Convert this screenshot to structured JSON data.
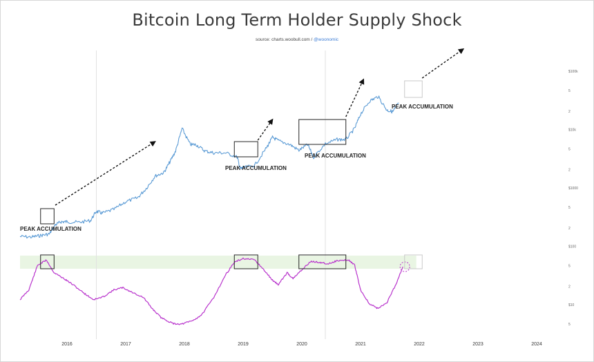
{
  "chart_data": {
    "type": "line",
    "title": "Bitcoin Long Term Holder Supply Shock",
    "source_prefix": "source: charts.woobull.com / ",
    "source_handle": "@woonomic",
    "x_ticks": [
      "2016",
      "2017",
      "2018",
      "2019",
      "2020",
      "2021",
      "2022",
      "2023",
      "2024"
    ],
    "y_axis_labels": [
      "$100k",
      "$10k",
      "$1000",
      "$100",
      "$10"
    ],
    "colors": {
      "price": "#5b9bd5",
      "supply_shock": "#b833cc",
      "accumulation_zone": "#e9f5e3",
      "box": "#222222"
    },
    "series": [
      {
        "name": "",
        "color": "#5b9bd5",
        "log_scale": true,
        "points": [
          [
            2015.2,
            240
          ],
          [
            2015.4,
            235
          ],
          [
            2015.55,
            250
          ],
          [
            2015.7,
            265
          ],
          [
            2015.8,
            380
          ],
          [
            2015.9,
            430
          ],
          [
            2016.0,
            430
          ],
          [
            2016.2,
            420
          ],
          [
            2016.4,
            450
          ],
          [
            2016.5,
            650
          ],
          [
            2016.6,
            600
          ],
          [
            2016.8,
            700
          ],
          [
            2017.0,
            950
          ],
          [
            2017.2,
            1100
          ],
          [
            2017.35,
            1600
          ],
          [
            2017.5,
            2600
          ],
          [
            2017.65,
            3000
          ],
          [
            2017.75,
            4500
          ],
          [
            2017.85,
            7000
          ],
          [
            2017.96,
            17000
          ],
          [
            2018.1,
            9000
          ],
          [
            2018.2,
            9000
          ],
          [
            2018.35,
            7000
          ],
          [
            2018.5,
            6500
          ],
          [
            2018.7,
            6500
          ],
          [
            2018.9,
            5500
          ],
          [
            2018.95,
            3500
          ],
          [
            2019.0,
            3600
          ],
          [
            2019.2,
            4000
          ],
          [
            2019.4,
            8000
          ],
          [
            2019.5,
            12000
          ],
          [
            2019.6,
            10500
          ],
          [
            2019.8,
            9000
          ],
          [
            2019.95,
            7200
          ],
          [
            2020.1,
            9000
          ],
          [
            2020.2,
            5500
          ],
          [
            2020.4,
            9300
          ],
          [
            2020.6,
            11000
          ],
          [
            2020.75,
            11000
          ],
          [
            2020.9,
            17000
          ],
          [
            2021.0,
            30000
          ],
          [
            2021.15,
            50000
          ],
          [
            2021.3,
            60000
          ],
          [
            2021.45,
            35000
          ],
          [
            2021.55,
            33000
          ],
          [
            2021.65,
            47000
          ]
        ]
      },
      {
        "name": "",
        "color": "#b833cc",
        "points": [
          [
            2015.2,
            0.42
          ],
          [
            2015.35,
            0.55
          ],
          [
            2015.5,
            0.88
          ],
          [
            2015.65,
            0.95
          ],
          [
            2015.78,
            0.78
          ],
          [
            2015.95,
            0.7
          ],
          [
            2016.1,
            0.62
          ],
          [
            2016.3,
            0.5
          ],
          [
            2016.45,
            0.42
          ],
          [
            2016.6,
            0.45
          ],
          [
            2016.8,
            0.55
          ],
          [
            2016.95,
            0.58
          ],
          [
            2017.1,
            0.52
          ],
          [
            2017.3,
            0.45
          ],
          [
            2017.45,
            0.3
          ],
          [
            2017.6,
            0.18
          ],
          [
            2017.8,
            0.1
          ],
          [
            2017.95,
            0.09
          ],
          [
            2018.15,
            0.14
          ],
          [
            2018.3,
            0.22
          ],
          [
            2018.5,
            0.45
          ],
          [
            2018.7,
            0.75
          ],
          [
            2018.85,
            0.92
          ],
          [
            2019.0,
            0.97
          ],
          [
            2019.2,
            0.95
          ],
          [
            2019.35,
            0.82
          ],
          [
            2019.5,
            0.68
          ],
          [
            2019.6,
            0.62
          ],
          [
            2019.75,
            0.78
          ],
          [
            2019.85,
            0.7
          ],
          [
            2020.0,
            0.82
          ],
          [
            2020.15,
            0.93
          ],
          [
            2020.3,
            0.92
          ],
          [
            2020.45,
            0.9
          ],
          [
            2020.6,
            0.94
          ],
          [
            2020.8,
            0.95
          ],
          [
            2020.9,
            0.88
          ],
          [
            2021.0,
            0.55
          ],
          [
            2021.15,
            0.36
          ],
          [
            2021.3,
            0.3
          ],
          [
            2021.45,
            0.38
          ],
          [
            2021.6,
            0.62
          ],
          [
            2021.72,
            0.86
          ]
        ]
      }
    ],
    "annotations": [
      "PEAK ACCUMULATION",
      "PEAK ACCUMULATION",
      "PEAK ACCUMULATION",
      "PEAK ACCUMULATION"
    ],
    "accumulation_boxes": [
      [
        2015.55,
        2015.78
      ],
      [
        2018.85,
        2019.25
      ],
      [
        2019.95,
        2020.75
      ]
    ],
    "projected_box": [
      2021.75,
      2022.05
    ],
    "vertical_markers": [
      2016.5,
      2020.4
    ],
    "grid": false,
    "legend": "none"
  }
}
